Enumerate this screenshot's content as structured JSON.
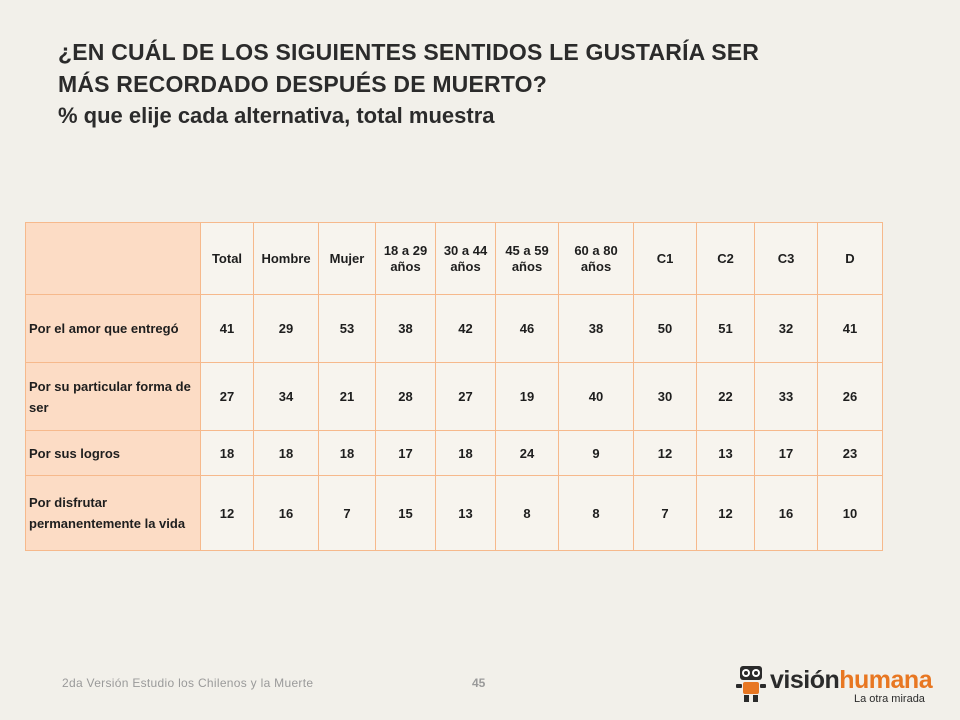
{
  "title": {
    "line1": "¿EN CUÁL DE LOS SIGUIENTES SENTIDOS LE GUSTARÍA SER",
    "line2": "MÁS RECORDADO DESPUÉS DE MUERTO?",
    "subtitle": "% que elije cada alternativa, total muestra"
  },
  "table": {
    "headers": [
      "Total",
      "Hombre",
      "Mujer",
      "18 a 29 años",
      "30 a 44 años",
      "45 a 59 años",
      "60 a 80 años",
      "C1",
      "C2",
      "C3",
      "D"
    ],
    "rows": [
      {
        "label": "Por el amor que entregó",
        "values": [
          "41",
          "29",
          "53",
          "38",
          "42",
          "46",
          "38",
          "50",
          "51",
          "32",
          "41"
        ]
      },
      {
        "label": "Por su particular forma de ser",
        "values": [
          "27",
          "34",
          "21",
          "28",
          "27",
          "19",
          "40",
          "30",
          "22",
          "33",
          "26"
        ]
      },
      {
        "label": "Por sus logros",
        "values": [
          "18",
          "18",
          "18",
          "17",
          "18",
          "24",
          "9",
          "12",
          "13",
          "17",
          "23"
        ]
      },
      {
        "label": "Por disfrutar permanentemente la vida",
        "values": [
          "12",
          "16",
          "7",
          "15",
          "13",
          "8",
          "8",
          "7",
          "12",
          "16",
          "10"
        ]
      }
    ]
  },
  "footer": {
    "study": "2da Versión Estudio los Chilenos y la Muerte",
    "page": "45"
  },
  "logo": {
    "brand_part1": "visión",
    "brand_part2": "humana",
    "tagline": "La otra mirada"
  },
  "colors": {
    "border": "#f6b98c",
    "label_bg": "#fcdcc5",
    "brand_orange": "#e87722"
  }
}
